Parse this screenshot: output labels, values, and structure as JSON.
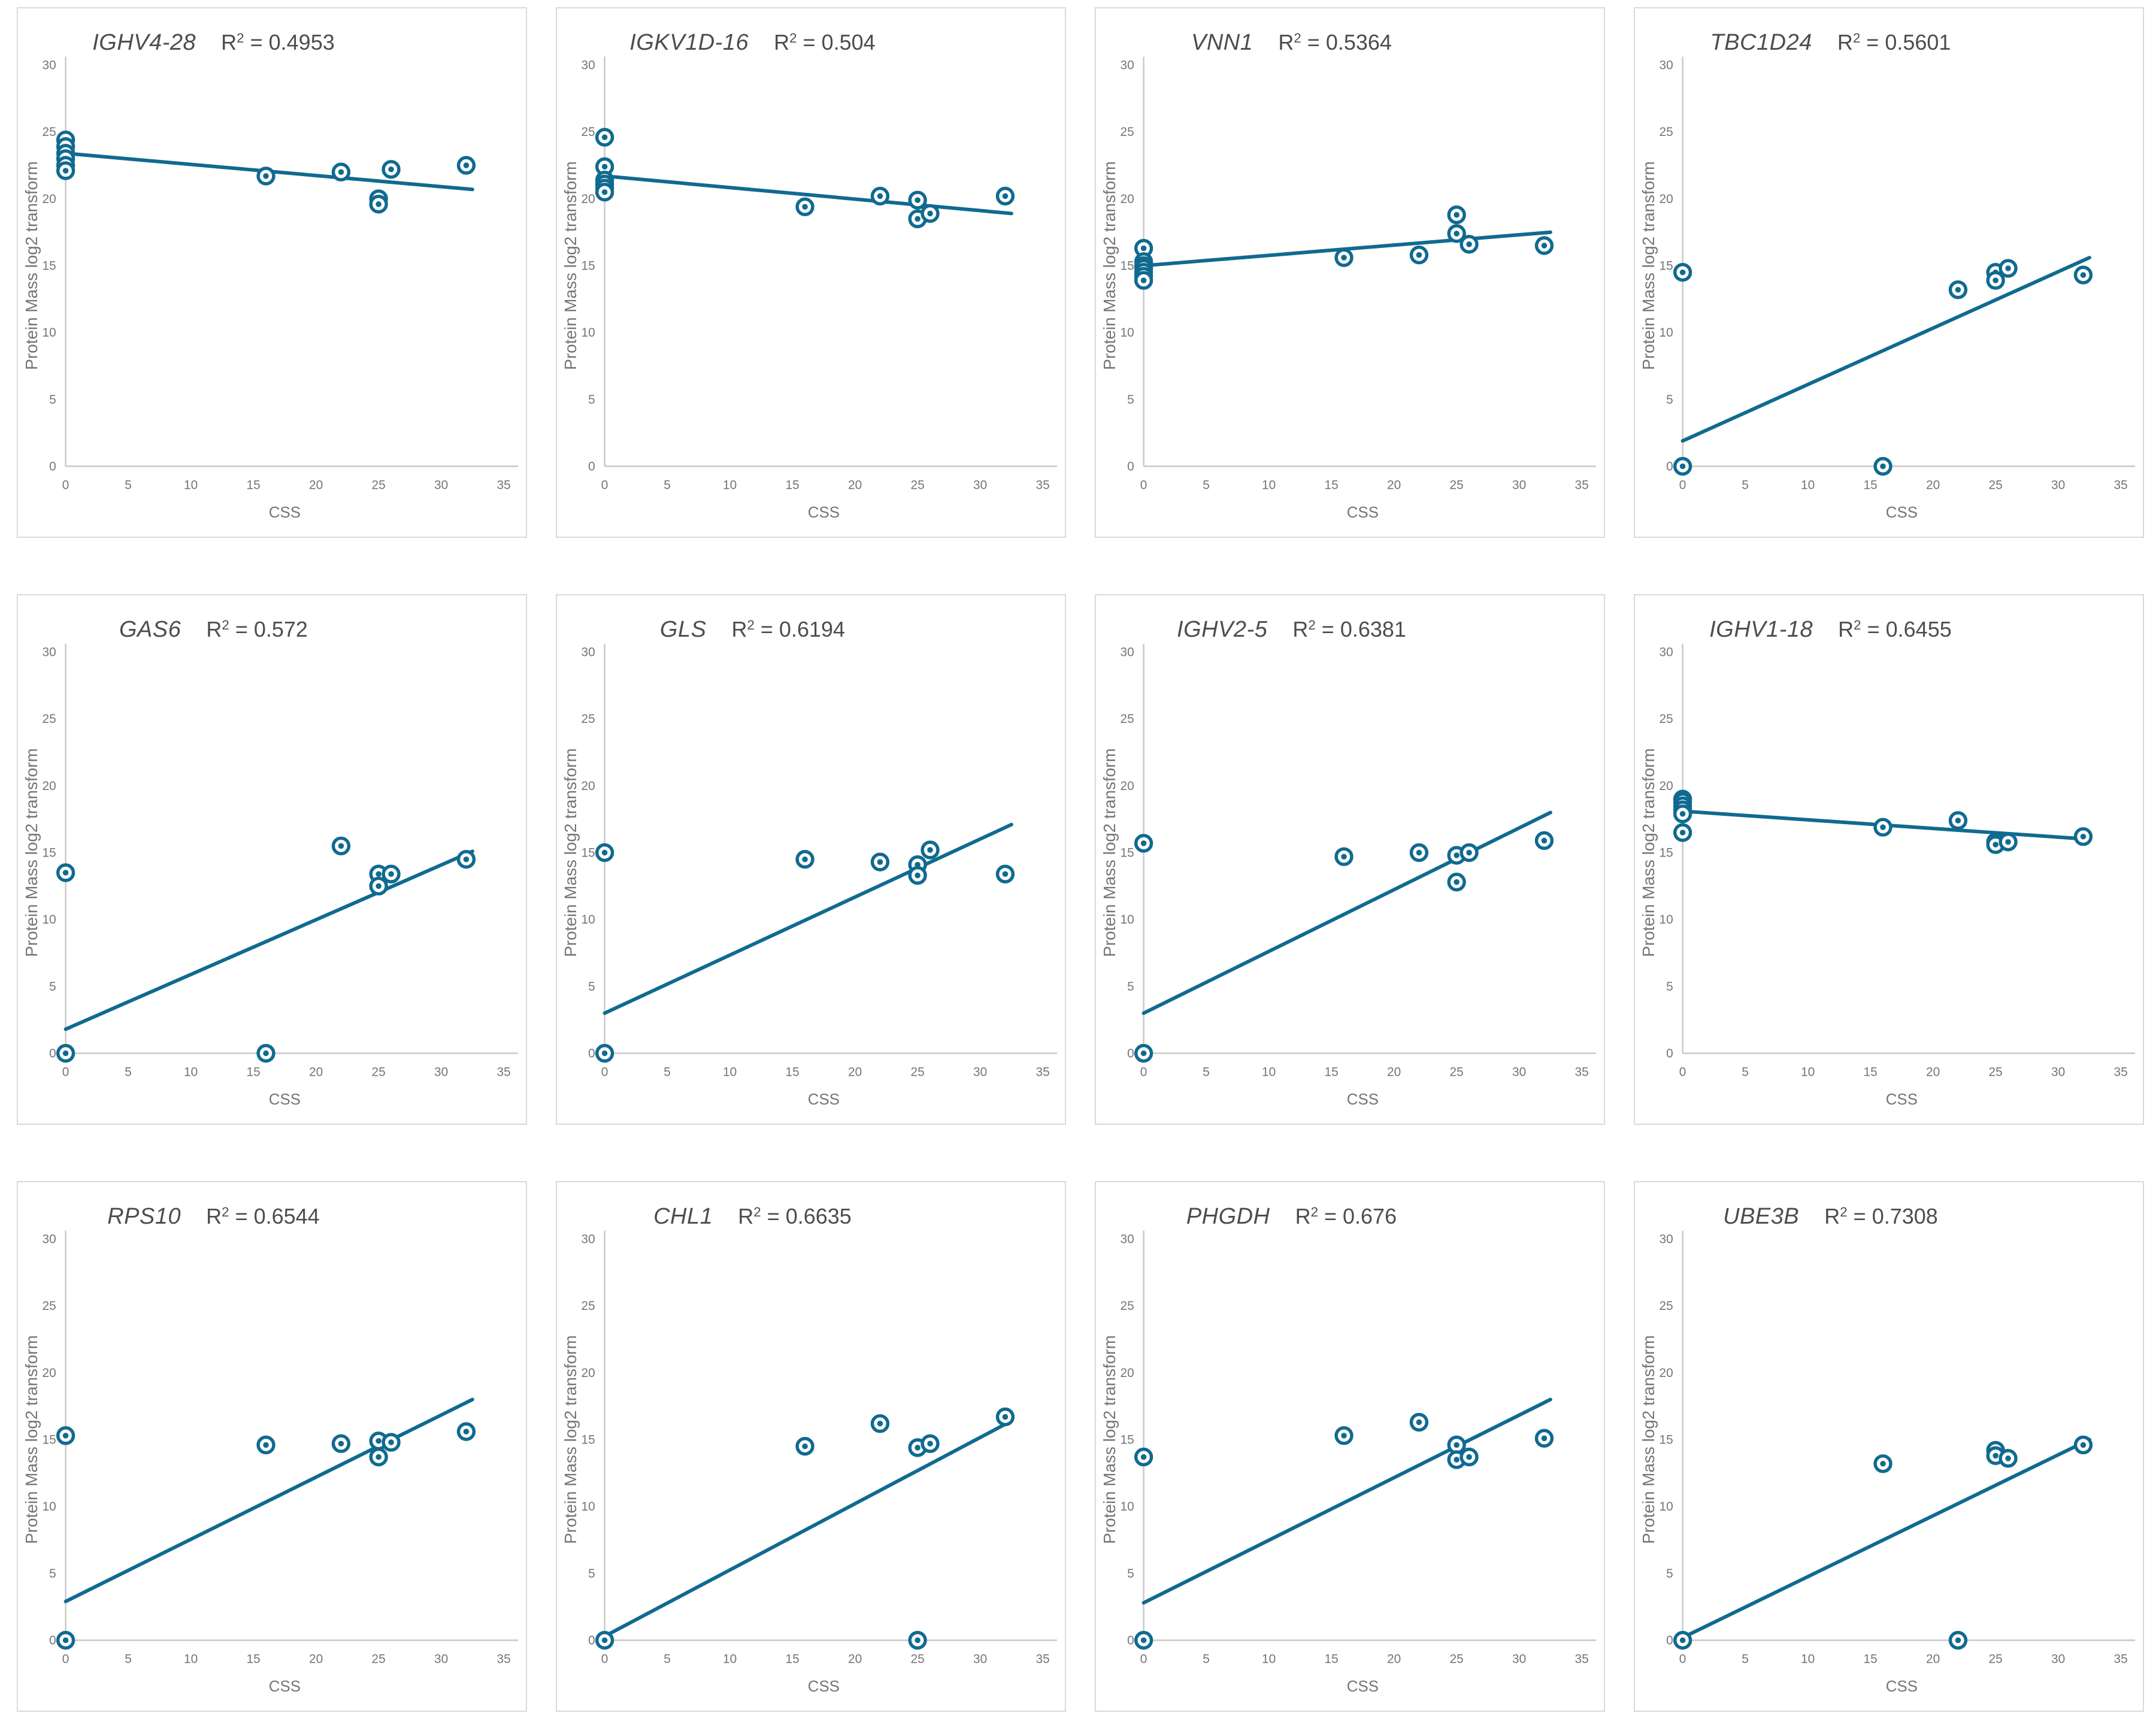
{
  "labels": {
    "r2_prefix": "R",
    "r2_sup": "2",
    "r2_equals": " = "
  },
  "style": {
    "accent": "#106a90",
    "marker_fill": "#ffffff",
    "axis_line": "#c9c9c9",
    "tick_color": "#757575",
    "title_color": "#4d4d4d",
    "panel_border": "#d9d9d9"
  },
  "chart_data": {
    "type": "scatter",
    "xlabel": "CSS",
    "ylabel": "Protein Mass log2 transform",
    "xlim": [
      0,
      35
    ],
    "ylim": [
      0,
      30
    ],
    "xticks": [
      0,
      5,
      10,
      15,
      20,
      25,
      30,
      35
    ],
    "yticks": [
      0,
      5,
      10,
      15,
      20,
      25,
      30
    ],
    "grid": false,
    "legend": "none",
    "marker_style": "open-circle-with-center-dot",
    "charts": [
      {
        "title": "IGHV4-28",
        "r2_value": "0.4953",
        "points": [
          [
            0,
            24.4
          ],
          [
            0,
            23.9
          ],
          [
            0,
            23.4
          ],
          [
            0,
            23.0
          ],
          [
            0,
            22.5
          ],
          [
            0,
            22.1
          ],
          [
            16,
            21.7
          ],
          [
            22,
            22.0
          ],
          [
            25,
            20.0
          ],
          [
            25,
            19.6
          ],
          [
            26,
            22.2
          ],
          [
            32,
            22.5
          ]
        ],
        "trendline": {
          "x1": 0,
          "y1": 23.4,
          "x2": 32.5,
          "y2": 20.7
        }
      },
      {
        "title": "IGKV1D-16",
        "r2_value": "0.504",
        "points": [
          [
            0,
            24.6
          ],
          [
            0,
            22.4
          ],
          [
            0,
            21.4
          ],
          [
            0,
            21.1
          ],
          [
            0,
            20.8
          ],
          [
            0,
            20.5
          ],
          [
            16,
            19.4
          ],
          [
            22,
            20.2
          ],
          [
            25,
            19.9
          ],
          [
            25,
            18.5
          ],
          [
            26,
            18.9
          ],
          [
            32,
            20.2
          ]
        ],
        "trendline": {
          "x1": 0,
          "y1": 21.7,
          "x2": 32.5,
          "y2": 18.9
        }
      },
      {
        "title": "VNN1",
        "r2_value": "0.5364",
        "points": [
          [
            0,
            16.3
          ],
          [
            0,
            15.3
          ],
          [
            0,
            15.0
          ],
          [
            0,
            14.8
          ],
          [
            0,
            14.5
          ],
          [
            0,
            14.2
          ],
          [
            0,
            13.9
          ],
          [
            16,
            15.6
          ],
          [
            22,
            15.8
          ],
          [
            25,
            18.8
          ],
          [
            25,
            17.4
          ],
          [
            26,
            16.6
          ],
          [
            32,
            16.5
          ]
        ],
        "trendline": {
          "x1": 0,
          "y1": 15.0,
          "x2": 32.5,
          "y2": 17.5
        }
      },
      {
        "title": "TBC1D24",
        "r2_value": "0.5601",
        "points": [
          [
            0,
            14.5
          ],
          [
            0,
            0
          ],
          [
            16,
            0
          ],
          [
            22,
            13.2
          ],
          [
            25,
            14.5
          ],
          [
            25,
            13.9
          ],
          [
            26,
            14.8
          ],
          [
            32,
            14.3
          ]
        ],
        "trendline": {
          "x1": 0,
          "y1": 1.9,
          "x2": 32.5,
          "y2": 15.6
        }
      },
      {
        "title": "GAS6",
        "r2_value": "0.572",
        "points": [
          [
            0,
            13.5
          ],
          [
            0,
            0
          ],
          [
            16,
            0
          ],
          [
            22,
            15.5
          ],
          [
            25,
            13.4
          ],
          [
            25,
            12.5
          ],
          [
            26,
            13.4
          ],
          [
            32,
            14.5
          ]
        ],
        "trendline": {
          "x1": 0,
          "y1": 1.8,
          "x2": 32.5,
          "y2": 15.1
        }
      },
      {
        "title": "GLS",
        "r2_value": "0.6194",
        "points": [
          [
            0,
            15.0
          ],
          [
            0,
            0
          ],
          [
            16,
            14.5
          ],
          [
            22,
            14.3
          ],
          [
            25,
            14.1
          ],
          [
            25,
            13.3
          ],
          [
            26,
            15.2
          ],
          [
            32,
            13.4
          ]
        ],
        "trendline": {
          "x1": 0,
          "y1": 3.0,
          "x2": 32.5,
          "y2": 17.1
        }
      },
      {
        "title": "IGHV2-5",
        "r2_value": "0.6381",
        "points": [
          [
            0,
            15.7
          ],
          [
            0,
            0
          ],
          [
            16,
            14.7
          ],
          [
            22,
            15.0
          ],
          [
            25,
            14.8
          ],
          [
            25,
            12.8
          ],
          [
            26,
            15.0
          ],
          [
            32,
            15.9
          ]
        ],
        "trendline": {
          "x1": 0,
          "y1": 3.0,
          "x2": 32.5,
          "y2": 18.0
        }
      },
      {
        "title": "IGHV1-18",
        "r2_value": "0.6455",
        "points": [
          [
            0,
            19.0
          ],
          [
            0,
            18.8
          ],
          [
            0,
            18.5
          ],
          [
            0,
            18.2
          ],
          [
            0,
            17.9
          ],
          [
            0,
            16.5
          ],
          [
            16,
            16.9
          ],
          [
            22,
            17.4
          ],
          [
            25,
            15.8
          ],
          [
            25,
            15.6
          ],
          [
            26,
            15.8
          ],
          [
            32,
            16.2
          ]
        ],
        "trendline": {
          "x1": 0,
          "y1": 18.1,
          "x2": 32.5,
          "y2": 16.0
        }
      },
      {
        "title": "RPS10",
        "r2_value": "0.6544",
        "points": [
          [
            0,
            15.3
          ],
          [
            0,
            0
          ],
          [
            16,
            14.6
          ],
          [
            22,
            14.7
          ],
          [
            25,
            14.9
          ],
          [
            25,
            13.7
          ],
          [
            26,
            14.8
          ],
          [
            32,
            15.6
          ]
        ],
        "trendline": {
          "x1": 0,
          "y1": 2.9,
          "x2": 32.5,
          "y2": 18.0
        }
      },
      {
        "title": "CHL1",
        "r2_value": "0.6635",
        "points": [
          [
            0,
            0
          ],
          [
            16,
            14.5
          ],
          [
            22,
            16.2
          ],
          [
            25,
            14.4
          ],
          [
            25,
            0
          ],
          [
            26,
            14.7
          ],
          [
            32,
            16.7
          ]
        ],
        "trendline": {
          "x1": 0,
          "y1": 0.3,
          "x2": 32.5,
          "y2": 16.4
        }
      },
      {
        "title": "PHGDH",
        "r2_value": "0.676",
        "points": [
          [
            0,
            13.7
          ],
          [
            0,
            0
          ],
          [
            16,
            15.3
          ],
          [
            22,
            16.3
          ],
          [
            25,
            14.6
          ],
          [
            25,
            13.5
          ],
          [
            26,
            13.7
          ],
          [
            32,
            15.1
          ]
        ],
        "trendline": {
          "x1": 0,
          "y1": 2.8,
          "x2": 32.5,
          "y2": 18.0
        }
      },
      {
        "title": "UBE3B",
        "r2_value": "0.7308",
        "points": [
          [
            0,
            0
          ],
          [
            16,
            13.2
          ],
          [
            22,
            0
          ],
          [
            25,
            14.2
          ],
          [
            25,
            13.8
          ],
          [
            26,
            13.6
          ],
          [
            32,
            14.6
          ]
        ],
        "trendline": {
          "x1": 0,
          "y1": 0.2,
          "x2": 32.5,
          "y2": 15.0
        }
      }
    ]
  }
}
